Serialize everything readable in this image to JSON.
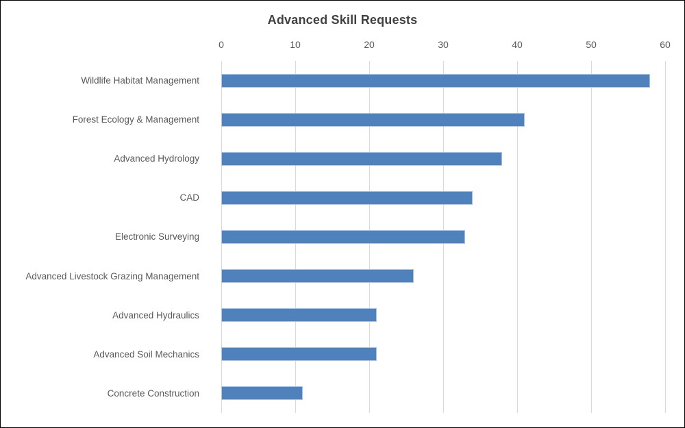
{
  "chart_data": {
    "type": "bar",
    "orientation": "horizontal",
    "title": "Advanced Skill Requests",
    "categories": [
      "Wildlife Habitat Management",
      "Forest Ecology & Management",
      "Advanced Hydrology",
      "CAD",
      "Electronic Surveying",
      "Advanced Livestock Grazing Management",
      "Advanced Hydraulics",
      "Advanced Soil Mechanics",
      "Concrete Construction"
    ],
    "values": [
      58,
      41,
      38,
      34,
      33,
      26,
      21,
      21,
      11
    ],
    "xlabel": "",
    "ylabel": "",
    "xlim": [
      0,
      60
    ],
    "xticks": [
      0,
      10,
      20,
      30,
      40,
      50,
      60
    ],
    "axis_position": "top",
    "grid": true,
    "legend": "none",
    "colors": {
      "bar_fill": "#4f81bd",
      "bar_border": "#adc5e0",
      "gridline": "#d9d9d9",
      "title_text": "#404040",
      "tick_text": "#595959",
      "category_text": "#595959",
      "background": "#ffffff",
      "frame_border": "#000000"
    }
  }
}
